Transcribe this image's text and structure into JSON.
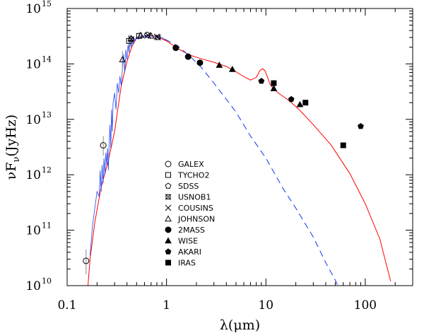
{
  "chart_data": {
    "type": "line",
    "title": "",
    "xlabel": "λ(μm)",
    "ylabel": "νF_ν(JyHz)",
    "xscale": "log",
    "yscale": "log",
    "xlim": [
      0.1,
      300
    ],
    "ylim": [
      10000000000.0,
      1000000000000000.0
    ],
    "x_ticks": [
      {
        "value": 0.1,
        "label": "0.1"
      },
      {
        "value": 1,
        "label": "1"
      },
      {
        "value": 10,
        "label": "10"
      },
      {
        "value": 100,
        "label": "100"
      }
    ],
    "y_ticks": [
      {
        "value": 10000000000.0,
        "base": "10",
        "exp": "10"
      },
      {
        "value": 100000000000.0,
        "base": "10",
        "exp": "11"
      },
      {
        "value": 1000000000000.0,
        "base": "10",
        "exp": "12"
      },
      {
        "value": 10000000000000.0,
        "base": "10",
        "exp": "13"
      },
      {
        "value": 100000000000000.0,
        "base": "10",
        "exp": "14"
      },
      {
        "value": 1000000000000000.0,
        "base": "10",
        "exp": "15"
      }
    ],
    "series": [
      {
        "name": "model (red solid)",
        "color": "#ff0000",
        "style": "solid",
        "x": [
          0.162,
          0.17,
          0.19,
          0.22,
          0.26,
          0.3,
          0.35,
          0.4,
          0.45,
          0.5,
          0.6,
          0.7,
          0.8,
          1.0,
          1.3,
          1.7,
          2.2,
          3.0,
          4.0,
          5.0,
          6.0,
          7.0,
          8.0,
          8.7,
          9.3,
          9.8,
          10.3,
          11.0,
          12.0,
          14.0,
          17.0,
          22.0,
          30.0,
          45.0,
          70.0,
          100.0,
          140.0,
          180.0
        ],
        "y": [
          10000000000.0,
          30000000000.0,
          140000000000.0,
          600000000000.0,
          1800000000000.0,
          6000000000000.0,
          40000000000000.0,
          110000000000000.0,
          210000000000000.0,
          290000000000000.0,
          320000000000000.0,
          330000000000000.0,
          310000000000000.0,
          260000000000000.0,
          190000000000000.0,
          145000000000000.0,
          125000000000000.0,
          107000000000000.0,
          90000000000000.0,
          72000000000000.0,
          59000000000000.0,
          51000000000000.0,
          57000000000000.0,
          76000000000000.0,
          82000000000000.0,
          75000000000000.0,
          60000000000000.0,
          43000000000000.0,
          35000000000000.0,
          28000000000000.0,
          22000000000000.0,
          14500000000000.0,
          8000000000000.0,
          3500000000000.0,
          1050000000000.0,
          300000000000.0,
          70000000000.0,
          12000000000.0
        ]
      },
      {
        "name": "stellar photosphere (blue dashed)",
        "color": "#2244ee",
        "style": "dashed",
        "x": [
          0.6,
          0.8,
          1.0,
          1.3,
          1.7,
          2.2,
          3.0,
          4.0,
          5.0,
          7.0,
          10.0,
          15.0,
          20.0,
          30.0,
          40.0,
          50.0,
          60.0
        ],
        "y": [
          330000000000000.0,
          320000000000000.0,
          270000000000000.0,
          210000000000000.0,
          140000000000000.0,
          90000000000000.0,
          45000000000000.0,
          23000000000000.0,
          13500000000000.0,
          5000000000000.0,
          2000000000000.0,
          550000000000.0,
          250000000000.0,
          75000000000.0,
          26000000000.0,
          12500000000.0,
          6000000000.0
        ]
      },
      {
        "name": "spectrum (blue solid)",
        "color": "#2244ee",
        "style": "solid",
        "x": [
          0.17,
          0.18,
          0.19,
          0.2,
          0.21,
          0.215,
          0.22,
          0.225,
          0.23,
          0.235,
          0.24,
          0.245,
          0.25,
          0.255,
          0.26,
          0.265,
          0.27,
          0.275,
          0.28,
          0.285,
          0.29,
          0.3,
          0.31,
          0.32,
          0.33,
          0.34,
          0.35,
          0.36,
          0.37,
          0.38,
          0.39,
          0.4,
          0.41,
          0.42,
          0.43,
          0.44,
          0.45,
          0.46,
          0.47,
          0.48,
          0.5,
          0.52,
          0.54,
          0.56,
          0.58,
          0.6,
          0.62,
          0.64,
          0.66,
          0.68,
          0.7,
          0.75,
          0.8,
          0.85,
          0.9,
          0.95,
          1.0
        ],
        "y": [
          35000000000.0,
          120000000000.0,
          250000000000.0,
          500000000000.0,
          400000000000.0,
          1200000000000.0,
          500000000000.0,
          1500000000000.0,
          700000000000.0,
          2000000000000.0,
          1000000000000.0,
          2500000000000.0,
          1500000000000.0,
          3000000000000.0,
          1200000000000.0,
          4000000000000.0,
          8000000000000.0,
          3000000000000.0,
          15000000000000.0,
          6000000000000.0,
          20000000000000.0,
          30000000000000.0,
          15000000000000.0,
          45000000000000.0,
          30000000000000.0,
          60000000000000.0,
          40000000000000.0,
          80000000000000.0,
          150000000000000.0,
          70000000000000.0,
          180000000000000.0,
          120000000000000.0,
          220000000000000.0,
          160000000000000.0,
          260000000000000.0,
          200000000000000.0,
          280000000000000.0,
          220000000000000.0,
          300000000000000.0,
          260000000000000.0,
          310000000000000.0,
          280000000000000.0,
          330000000000000.0,
          300000000000000.0,
          320000000000000.0,
          290000000000000.0,
          330000000000000.0,
          310000000000000.0,
          330000000000000.0,
          300000000000000.0,
          320000000000000.0,
          300000000000000.0,
          310000000000000.0,
          290000000000000.0,
          300000000000000.0,
          280000000000000.0,
          270000000000000.0
        ]
      }
    ],
    "points": [
      {
        "survey": "GALEX",
        "marker": "circle-open",
        "x": 0.155,
        "y": 28000000000.0,
        "err": [
          16000000000.0,
          45000000000.0
        ]
      },
      {
        "survey": "GALEX",
        "marker": "circle-open",
        "x": 0.231,
        "y": 3400000000000.0,
        "err": [
          2200000000000.0,
          5000000000000.0
        ]
      },
      {
        "survey": "TYCHO2",
        "marker": "square-open",
        "x": 0.42,
        "y": 260000000000000.0,
        "err": [
          190000000000000.0,
          340000000000000.0
        ]
      },
      {
        "survey": "TYCHO2",
        "marker": "square-open",
        "x": 0.53,
        "y": 320000000000000.0,
        "err": [
          280000000000000.0,
          370000000000000.0
        ]
      },
      {
        "survey": "SDSS",
        "marker": "pentagon-open",
        "x": 0.64,
        "y": 335000000000000.0,
        "err": null
      },
      {
        "survey": "USNOB1",
        "marker": "star-open",
        "x": 0.44,
        "y": 280000000000000.0,
        "err": null
      },
      {
        "survey": "USNOB1",
        "marker": "star-open",
        "x": 0.82,
        "y": 300000000000000.0,
        "err": null
      },
      {
        "survey": "COUSINS",
        "marker": "cross",
        "x": 0.65,
        "y": 330000000000000.0,
        "err": null
      },
      {
        "survey": "COUSINS",
        "marker": "cross",
        "x": 0.8,
        "y": 310000000000000.0,
        "err": null
      },
      {
        "survey": "JOHNSON",
        "marker": "triangle-open",
        "x": 0.36,
        "y": 120000000000000.0,
        "err": [
          80000000000000.0,
          170000000000000.0
        ]
      },
      {
        "survey": "JOHNSON",
        "marker": "triangle-open",
        "x": 0.44,
        "y": 290000000000000.0,
        "err": null
      },
      {
        "survey": "JOHNSON",
        "marker": "triangle-open",
        "x": 0.55,
        "y": 330000000000000.0,
        "err": null
      },
      {
        "survey": "JOHNSON",
        "marker": "triangle-open",
        "x": 0.7,
        "y": 320000000000000.0,
        "err": null
      },
      {
        "survey": "2MASS",
        "marker": "circle-filled",
        "x": 1.24,
        "y": 195000000000000.0,
        "err": null
      },
      {
        "survey": "2MASS",
        "marker": "circle-filled",
        "x": 1.65,
        "y": 135000000000000.0,
        "err": null
      },
      {
        "survey": "2MASS",
        "marker": "circle-filled",
        "x": 2.17,
        "y": 105000000000000.0,
        "err": null
      },
      {
        "survey": "WISE",
        "marker": "triangle-filled",
        "x": 3.4,
        "y": 95000000000000.0,
        "err": null
      },
      {
        "survey": "WISE",
        "marker": "triangle-filled",
        "x": 4.6,
        "y": 80000000000000.0,
        "err": null
      },
      {
        "survey": "WISE",
        "marker": "triangle-filled",
        "x": 12.0,
        "y": 36000000000000.0,
        "err": null
      },
      {
        "survey": "WISE",
        "marker": "triangle-filled",
        "x": 22.0,
        "y": 18500000000000.0,
        "err": null
      },
      {
        "survey": "AKARI",
        "marker": "pentagon-filled",
        "x": 9.0,
        "y": 49000000000000.0,
        "err": null
      },
      {
        "survey": "AKARI",
        "marker": "pentagon-filled",
        "x": 18.0,
        "y": 23000000000000.0,
        "err": null
      },
      {
        "survey": "AKARI",
        "marker": "pentagon-filled",
        "x": 90.0,
        "y": 7500000000000.0,
        "err": null
      },
      {
        "survey": "IRAS",
        "marker": "square-filled",
        "x": 12.0,
        "y": 45000000000000.0,
        "err": null
      },
      {
        "survey": "IRAS",
        "marker": "square-filled",
        "x": 25.0,
        "y": 20000000000000.0,
        "err": null
      },
      {
        "survey": "IRAS",
        "marker": "square-filled",
        "x": 60.0,
        "y": 3400000000000.0,
        "err": null
      }
    ],
    "legend": {
      "placement": "lower-center",
      "entries": [
        {
          "label": "GALEX",
          "marker": "circle-open"
        },
        {
          "label": "TYCHO2",
          "marker": "square-open"
        },
        {
          "label": "SDSS",
          "marker": "pentagon-open"
        },
        {
          "label": "USNOB1",
          "marker": "star-open"
        },
        {
          "label": "COUSINS",
          "marker": "cross"
        },
        {
          "label": "JOHNSON",
          "marker": "triangle-open"
        },
        {
          "label": "2MASS",
          "marker": "circle-filled"
        },
        {
          "label": "WISE",
          "marker": "triangle-filled"
        },
        {
          "label": "AKARI",
          "marker": "pentagon-filled"
        },
        {
          "label": "IRAS",
          "marker": "square-filled"
        }
      ]
    }
  }
}
